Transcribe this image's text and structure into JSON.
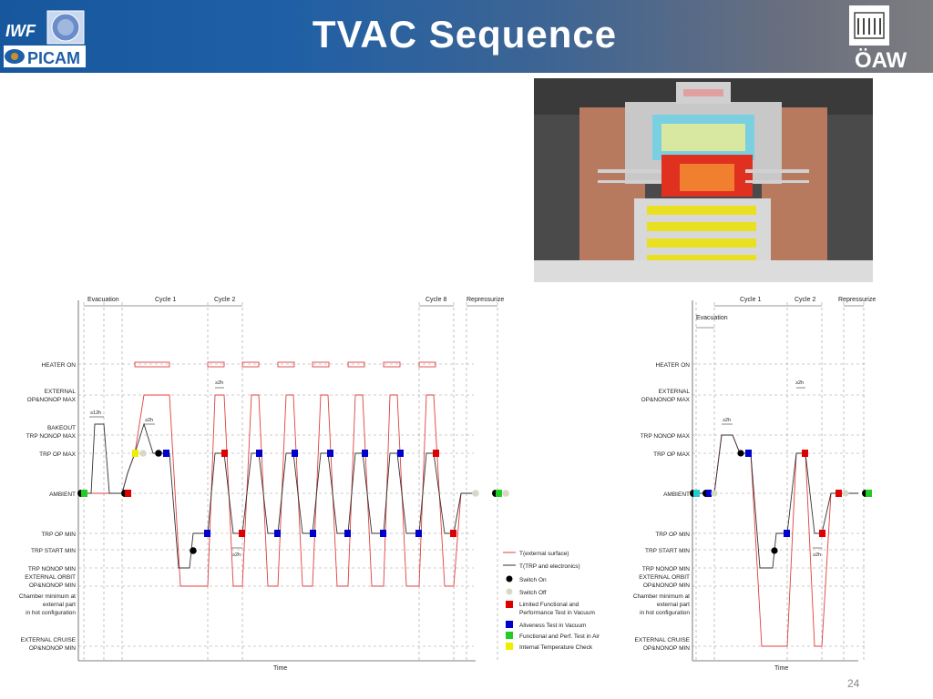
{
  "header": {
    "title": "TVAC Sequence",
    "left_logo_text_top": "IWF",
    "left_logo_text_bottom": "PICAM",
    "right_logo_text": "ÖAW",
    "gradient": [
      "#17579d",
      "#7d7d80"
    ]
  },
  "page_number": "24",
  "left_chart": {
    "phases": [
      "Evacuation",
      "Cycle 1",
      "Cycle 2",
      "Cycle 8",
      "Repressurize"
    ],
    "levels": [
      "HEATER ON",
      "EXTERNAL",
      "OP&NONOP MAX",
      "BAKEOUT",
      "TRP NONOP MAX",
      "TRP OP MAX",
      "AMBIENT",
      "TRP OP MIN",
      "TRP START MIN",
      "TRP NONOP MIN",
      "EXTERNAL ORBIT",
      "OP&NONOP MIN",
      "Chamber minimum at",
      "external part",
      "in hot configuration",
      "EXTERNAL CRUISE",
      "OP&NONOP MIN"
    ],
    "annotations": [
      "≥12h",
      "≥2h",
      "≥2h",
      "≥2h"
    ],
    "xlabel": "Time"
  },
  "right_chart": {
    "phases": [
      "Cycle 1",
      "Cycle 2",
      "Repressurize",
      "Evacuation"
    ],
    "levels": [
      "HEATER ON",
      "EXTERNAL",
      "OP&NONOP MAX",
      "TRP NONOP MAX",
      "TRP OP MAX",
      "AMBIENT",
      "TRP OP MIN",
      "TRP START MIN",
      "TRP NONOP MIN",
      "EXTERNAL ORBIT",
      "OP&NONOP MIN",
      "Chamber minimum at",
      "external part",
      "in hot configuration",
      "EXTERNAL CRUISE",
      "OP&NONOP MIN"
    ],
    "annotations": [
      "≥2h",
      "≥2h",
      "≥2h"
    ],
    "xlabel": "Time"
  },
  "legend": [
    {
      "label": "T(external surface)",
      "kind": "line",
      "color": "#e04040"
    },
    {
      "label": "T(TRP and electronics)",
      "kind": "line",
      "color": "#333333"
    },
    {
      "label": "Switch On",
      "kind": "dot",
      "color": "#000000"
    },
    {
      "label": "Switch Off",
      "kind": "dot",
      "color": "#d8d8c8"
    },
    {
      "label": "Limited Functional and",
      "label2": "Performance Test in Vacuum",
      "kind": "square",
      "color": "#dd0000"
    },
    {
      "label": "Aliveness Test in Vacuum",
      "kind": "square",
      "color": "#0000cc"
    },
    {
      "label": "Functional and Perf. Test in Air",
      "kind": "square",
      "color": "#22cc22"
    },
    {
      "label": "Internal Temperature Check",
      "kind": "square",
      "color": "#eeee00"
    }
  ]
}
